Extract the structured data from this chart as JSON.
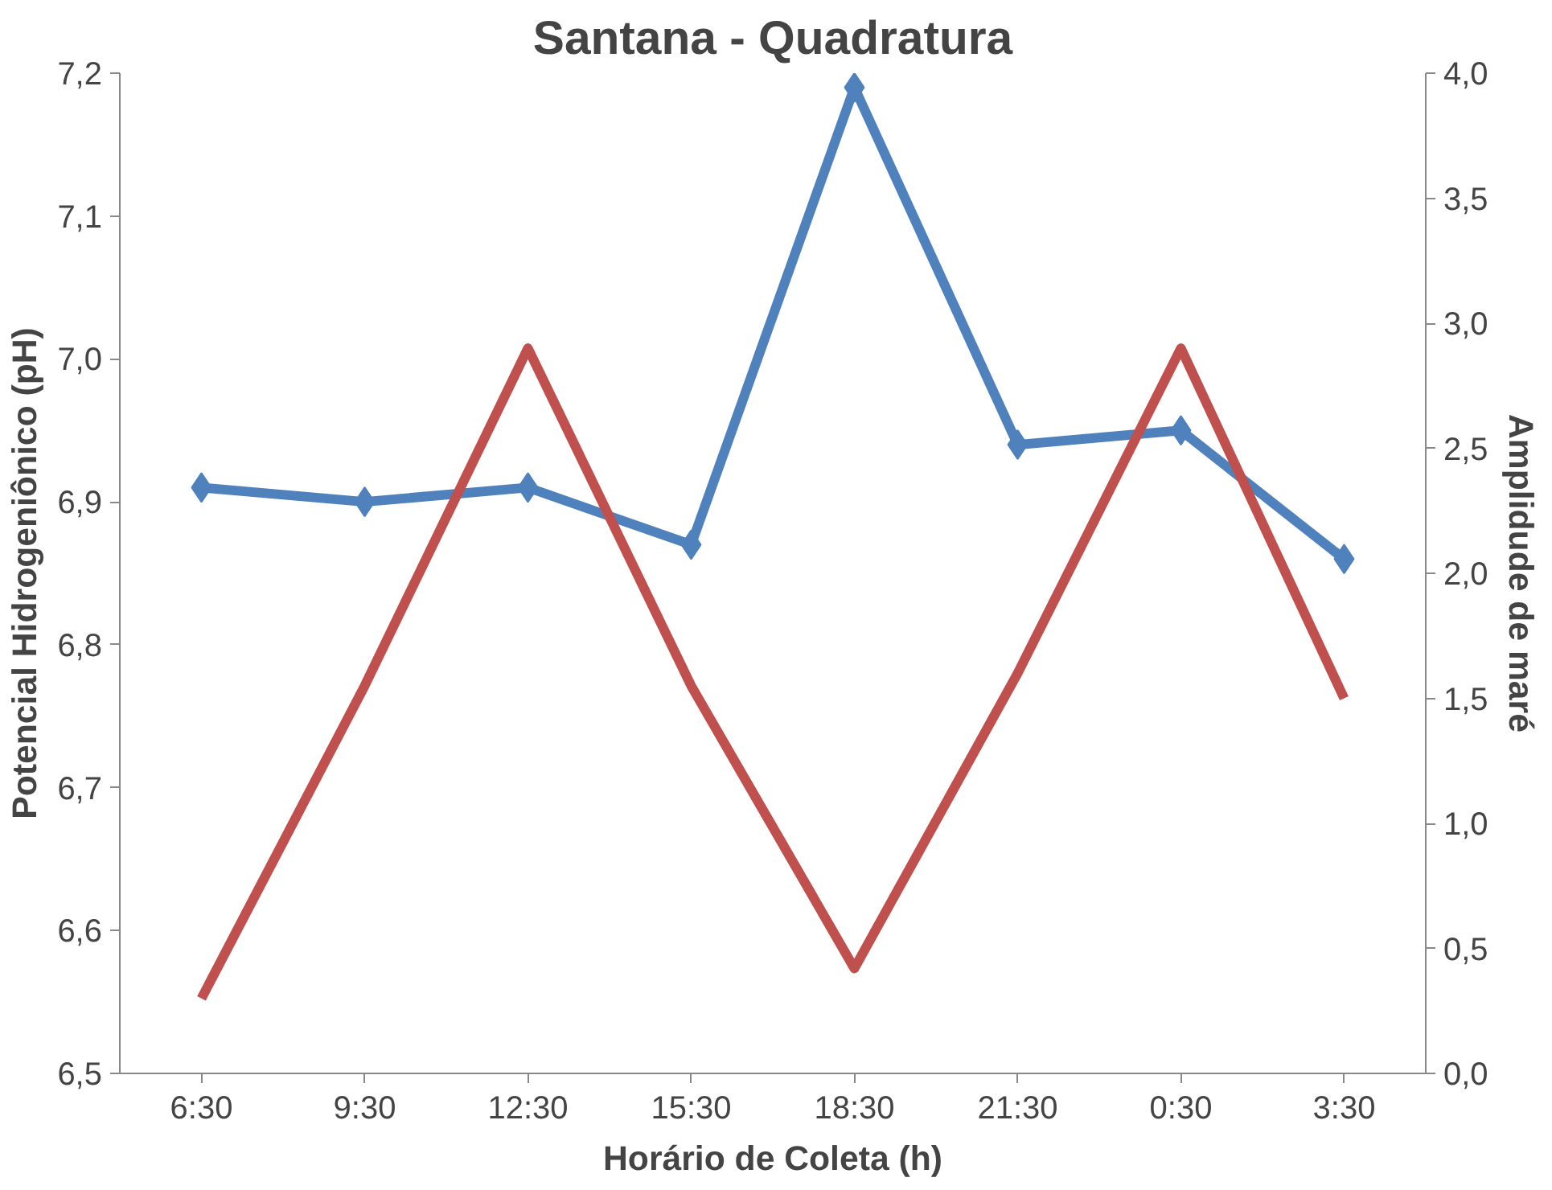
{
  "chart_data": {
    "type": "line",
    "title": "Santana - Quadratura",
    "xlabel": "Horário de Coleta (h)",
    "ylabel": "Potencial Hidrogeniônico (pH)",
    "y2label": "Amplidude de maré",
    "categories": [
      "6:30",
      "9:30",
      "12:30",
      "15:30",
      "18:30",
      "21:30",
      "0:30",
      "3:30"
    ],
    "series": [
      {
        "color": "#4f81bd",
        "values": [
          6.91,
          6.9,
          6.91,
          6.87,
          7.19,
          6.94,
          6.95,
          6.86
        ],
        "marker": "diamond"
      },
      {
        "color": "#c0504d",
        "values": [
          0.3,
          1.55,
          2.9,
          1.55,
          0.42,
          1.6,
          2.9,
          1.5
        ],
        "axis": "y2",
        "marker": "none"
      }
    ],
    "ylim": [
      6.5,
      7.2
    ],
    "yticks": [
      {
        "value": 6.5,
        "label": "6,5"
      },
      {
        "value": 6.6,
        "label": "6,6"
      },
      {
        "value": 6.7,
        "label": "6,7"
      },
      {
        "value": 6.8,
        "label": "6,8"
      },
      {
        "value": 6.9,
        "label": "6,9"
      },
      {
        "value": 7.0,
        "label": "7,0"
      },
      {
        "value": 7.1,
        "label": "7,1"
      },
      {
        "value": 7.2,
        "label": "7,2"
      }
    ],
    "y2lim": [
      0,
      4
    ],
    "y2ticks": [
      {
        "value": 0,
        "label": "0,0"
      },
      {
        "value": 0.5,
        "label": "0,5"
      },
      {
        "value": 1,
        "label": "1,0"
      },
      {
        "value": 1.5,
        "label": "1,5"
      },
      {
        "value": 2,
        "label": "2,0"
      },
      {
        "value": 2.5,
        "label": "2,5"
      },
      {
        "value": 3,
        "label": "3,0"
      },
      {
        "value": 3.5,
        "label": "3,5"
      },
      {
        "value": 4,
        "label": "4,0"
      }
    ],
    "grid": false
  }
}
